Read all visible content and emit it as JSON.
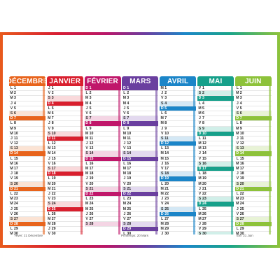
{
  "months": [
    {
      "name": "DÉCEMBRE",
      "color": "#e8641c",
      "light": "#fbe3d4",
      "days": 31,
      "startDow": 0
    },
    {
      "name": "JANVIER",
      "color": "#d91f2e",
      "light": "#f9d9db",
      "days": 31,
      "startDow": 3
    },
    {
      "name": "FÉVRIER",
      "color": "#c0176a",
      "light": "#f4d5e4",
      "days": 28,
      "startDow": 6
    },
    {
      "name": "MARS",
      "color": "#6a3f9f",
      "light": "#e3d9ef",
      "days": 31,
      "startDow": 6
    },
    {
      "name": "AVRIL",
      "color": "#1b85c8",
      "light": "#d4e8f5",
      "days": 30,
      "startDow": 2
    },
    {
      "name": "MAI",
      "color": "#16a08a",
      "light": "#d1efe9",
      "days": 31,
      "startDow": 4
    },
    {
      "name": "JUIN",
      "color": "#8dc23a",
      "light": "#e8f3d6",
      "days": 30,
      "startDow": 0
    }
  ],
  "dayLetters": [
    "L",
    "M",
    "M",
    "J",
    "V",
    "S",
    "D"
  ],
  "footer": {
    "winter": "Hiver: 21 Décembre",
    "spring": "Printemps: 20 Mars",
    "summer": "Été: 21 Juin"
  }
}
